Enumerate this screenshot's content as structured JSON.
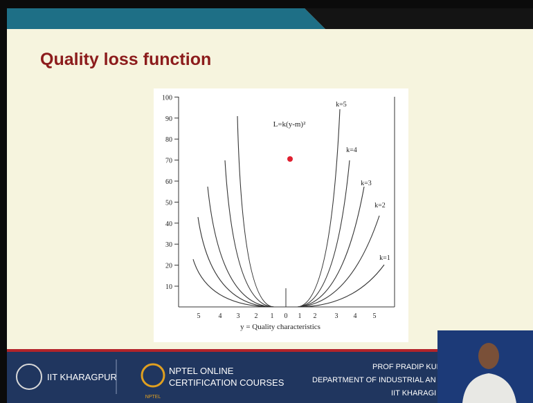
{
  "header": {
    "title": "Quality loss function"
  },
  "figure": {
    "equation": "L=k(y-m)²",
    "yticks": [
      10,
      20,
      30,
      40,
      50,
      60,
      70,
      80,
      90,
      100
    ],
    "xticks": [
      5,
      4,
      3,
      2,
      1,
      0,
      1,
      2,
      3,
      4,
      5
    ],
    "x_label": "y = Quality characteristics",
    "curve_labels": [
      "k=5",
      "k=4",
      "k=3",
      "k=2",
      "k=1"
    ]
  },
  "footer": {
    "institute": "IIT KHARAGPUR",
    "nptel_line1": "NPTEL ONLINE",
    "nptel_line2": "CERTIFICATION COURSES",
    "nptel_small": "NPTEL",
    "speaker": "PROF PRADIP KUN",
    "department": "DEPARTMENT OF INDUSTRIAL AN",
    "speaker_institute": "IIT KHARAGI"
  }
}
